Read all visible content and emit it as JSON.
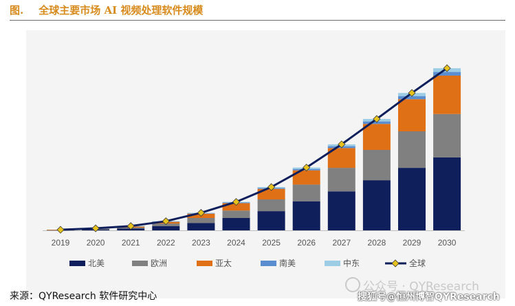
{
  "header": {
    "fig_label": "图.",
    "title": "全球主要市场 AI 视频处理软件规模"
  },
  "footer": {
    "source": "来源：QYResearch  软件研究中心"
  },
  "watermark": {
    "top": "公众号 · QYResearch",
    "bottom": "搜狐号@恒州博智QYResearch"
  },
  "chart_data": {
    "type": "bar",
    "stacked": true,
    "title": "",
    "xlabel": "",
    "ylabel": "",
    "categories": [
      "2019",
      "2020",
      "2021",
      "2022",
      "2023",
      "2024",
      "2025",
      "2026",
      "2027",
      "2028",
      "2029",
      "2030"
    ],
    "ylim": [
      0,
      250
    ],
    "grid": false,
    "legend_position": "bottom",
    "series": [
      {
        "name": "北美",
        "color": "#0e1f5b",
        "values": [
          0.5,
          1.5,
          3,
          7,
          12,
          20,
          31,
          47,
          63,
          81,
          101,
          118
        ]
      },
      {
        "name": "欧洲",
        "color": "#808080",
        "values": [
          0.3,
          0.8,
          1.5,
          4,
          8,
          12,
          19,
          27,
          38,
          49,
          59,
          70
        ]
      },
      {
        "name": "亚太",
        "color": "#e07015",
        "values": [
          0.2,
          0.8,
          2,
          3,
          7,
          12,
          17,
          23,
          32,
          42,
          52,
          62
        ]
      },
      {
        "name": "南美",
        "color": "#5a8ed0",
        "values": [
          0,
          0.1,
          0.2,
          0.3,
          0.6,
          1,
          1.5,
          2.2,
          3,
          4,
          5,
          6
        ]
      },
      {
        "name": "中东",
        "color": "#9dcde5",
        "values": [
          0,
          0.1,
          0.3,
          0.5,
          0.8,
          1,
          1.5,
          2.3,
          3,
          4,
          5,
          6
        ]
      }
    ],
    "total_line": {
      "name": "全球",
      "color": "#0e1f5b",
      "marker_color": "#e8c21c",
      "values": [
        1,
        3.3,
        7,
        14.8,
        28.4,
        46,
        70,
        101.5,
        139,
        180,
        222,
        262
      ]
    }
  }
}
